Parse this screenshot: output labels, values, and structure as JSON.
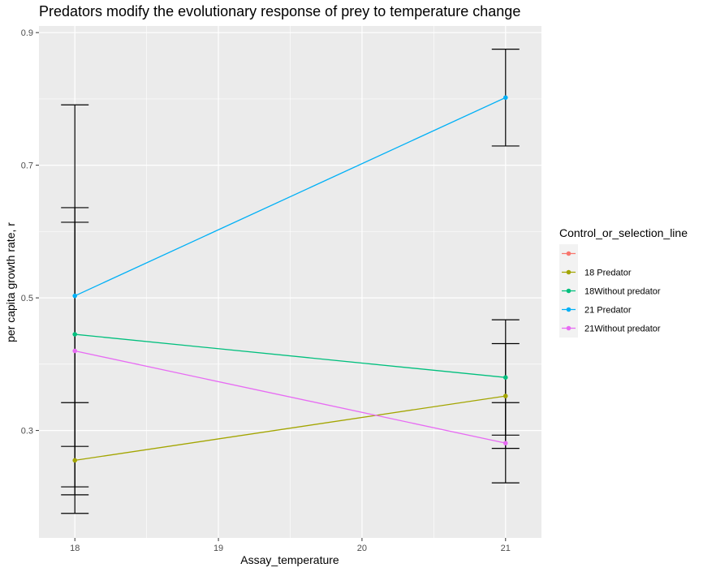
{
  "chart_data": {
    "type": "line",
    "title": "Predators modify the evolutionary response of prey to temperature change",
    "xlabel": "Assay_temperature",
    "ylabel": "per capita growth rate, r",
    "xlim": [
      17.75,
      21.25
    ],
    "ylim": [
      0.138,
      0.91
    ],
    "x_ticks": [
      18,
      19,
      20,
      21
    ],
    "x_tick_labels": [
      "18",
      "19",
      "20",
      "21"
    ],
    "y_ticks": [
      0.3,
      0.5,
      0.7,
      0.9
    ],
    "y_tick_labels": [
      "0.3",
      "0.5",
      "0.7",
      "0.9"
    ],
    "grid": true,
    "background": "#ebebeb",
    "legend": {
      "title": "Control_or_selection_line",
      "position": "right"
    },
    "series": [
      {
        "name": "",
        "color": "#f8766d",
        "points": []
      },
      {
        "name": "18 Predator",
        "color": "#a3a500",
        "points": [
          {
            "x": 18,
            "y": 0.255,
            "err_low": 0.175,
            "err_high": 0.342
          },
          {
            "x": 21,
            "y": 0.352,
            "err_low": 0.273,
            "err_high": 0.431
          }
        ]
      },
      {
        "name": "18Without predator",
        "color": "#00bf7d",
        "points": [
          {
            "x": 18,
            "y": 0.445,
            "err_low": 0.276,
            "err_high": 0.614
          },
          {
            "x": 21,
            "y": 0.38,
            "err_low": 0.293,
            "err_high": 0.467
          }
        ]
      },
      {
        "name": "21 Predator",
        "color": "#00b0f6",
        "points": [
          {
            "x": 18,
            "y": 0.503,
            "err_low": 0.215,
            "err_high": 0.791
          },
          {
            "x": 21,
            "y": 0.802,
            "err_low": 0.729,
            "err_high": 0.875
          }
        ]
      },
      {
        "name": "21Without predator",
        "color": "#e76bf3",
        "points": [
          {
            "x": 18,
            "y": 0.42,
            "err_low": 0.203,
            "err_high": 0.636
          },
          {
            "x": 21,
            "y": 0.281,
            "err_low": 0.221,
            "err_high": 0.342
          }
        ]
      }
    ]
  }
}
